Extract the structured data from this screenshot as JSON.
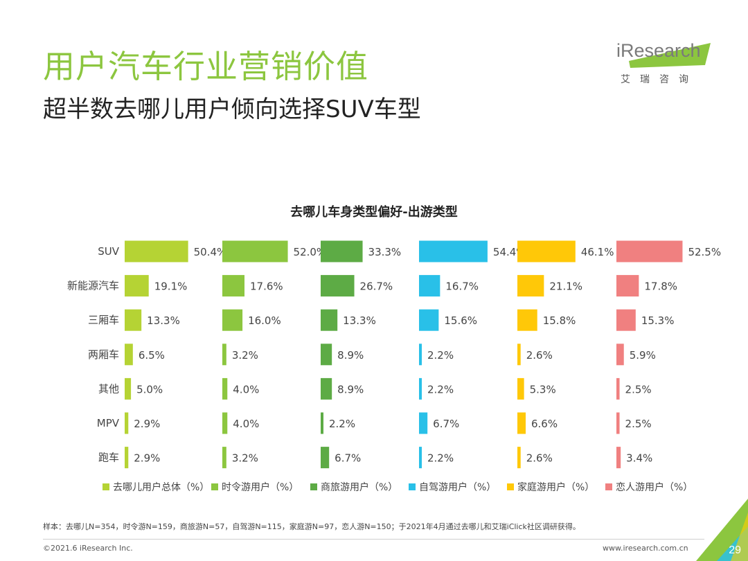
{
  "header": {
    "title": "用户汽车行业营销价值",
    "subtitle": "超半数去哪儿用户倾向选择SUV车型"
  },
  "logo": {
    "word": "iResearch",
    "sub": "艾瑞咨询"
  },
  "chart_data": {
    "type": "bar",
    "orientation": "horizontal",
    "layout": "small-multiples",
    "title": "去哪儿车身类型偏好-出游类型",
    "unit": "%",
    "categories": [
      "SUV",
      "新能源汽车",
      "三厢车",
      "两厢车",
      "其他",
      "MPV",
      "跑车"
    ],
    "series": [
      {
        "name": "去哪儿用户总体（%）",
        "color": "#b5d334",
        "values": [
          50.4,
          19.1,
          13.3,
          6.5,
          5.0,
          2.9,
          2.9
        ]
      },
      {
        "name": "时令游用户（%）",
        "color": "#8cc63f",
        "values": [
          52.0,
          17.6,
          16.0,
          3.2,
          4.0,
          4.0,
          3.2
        ]
      },
      {
        "name": "商旅游用户（%）",
        "color": "#5dab45",
        "values": [
          33.3,
          26.7,
          13.3,
          8.9,
          8.9,
          2.2,
          6.7
        ]
      },
      {
        "name": "自驾游用户（%）",
        "color": "#29c0e8",
        "values": [
          54.4,
          16.7,
          15.6,
          2.2,
          2.2,
          6.7,
          2.2
        ]
      },
      {
        "name": "家庭游用户（%）",
        "color": "#ffc808",
        "values": [
          46.1,
          21.1,
          15.8,
          2.6,
          5.3,
          6.6,
          2.6
        ]
      },
      {
        "name": "恋人游用户（%）",
        "color": "#f08080",
        "values": [
          52.5,
          17.8,
          15.3,
          5.9,
          2.5,
          2.5,
          3.4
        ]
      }
    ],
    "labels": [
      [
        "50.4%",
        "19.1%",
        "13.3%",
        "6.5%",
        "5.0%",
        "2.9%",
        "2.9%"
      ],
      [
        "52.0%",
        "17.6%",
        "16.0%",
        "3.2%",
        "4.0%",
        "4.0%",
        "3.2%"
      ],
      [
        "33.3%",
        "26.7%",
        "13.3%",
        "8.9%",
        "8.9%",
        "2.2%",
        "6.7%"
      ],
      [
        "54.4%",
        "16.7%",
        "15.6%",
        "2.2%",
        "2.2%",
        "6.7%",
        "2.2%"
      ],
      [
        "46.1%",
        "21.1%",
        "15.8%",
        "2.6%",
        "5.3%",
        "6.6%",
        "2.6%"
      ],
      [
        "52.5%",
        "17.8%",
        "15.3%",
        "5.9%",
        "2.5%",
        "2.5%",
        "3.4%"
      ]
    ],
    "legend_position": "bottom"
  },
  "footer": {
    "note": "样本：去哪儿N=354，时令游N=159，商旅游N=57，自驾游N=115，家庭游N=97，恋人游N=150；于2021年4月通过去哪儿和艾瑞iClick社区调研获得。",
    "copyright": "©2021.6 iResearch Inc.",
    "site": "www.iresearch.com.cn",
    "page": "29"
  }
}
